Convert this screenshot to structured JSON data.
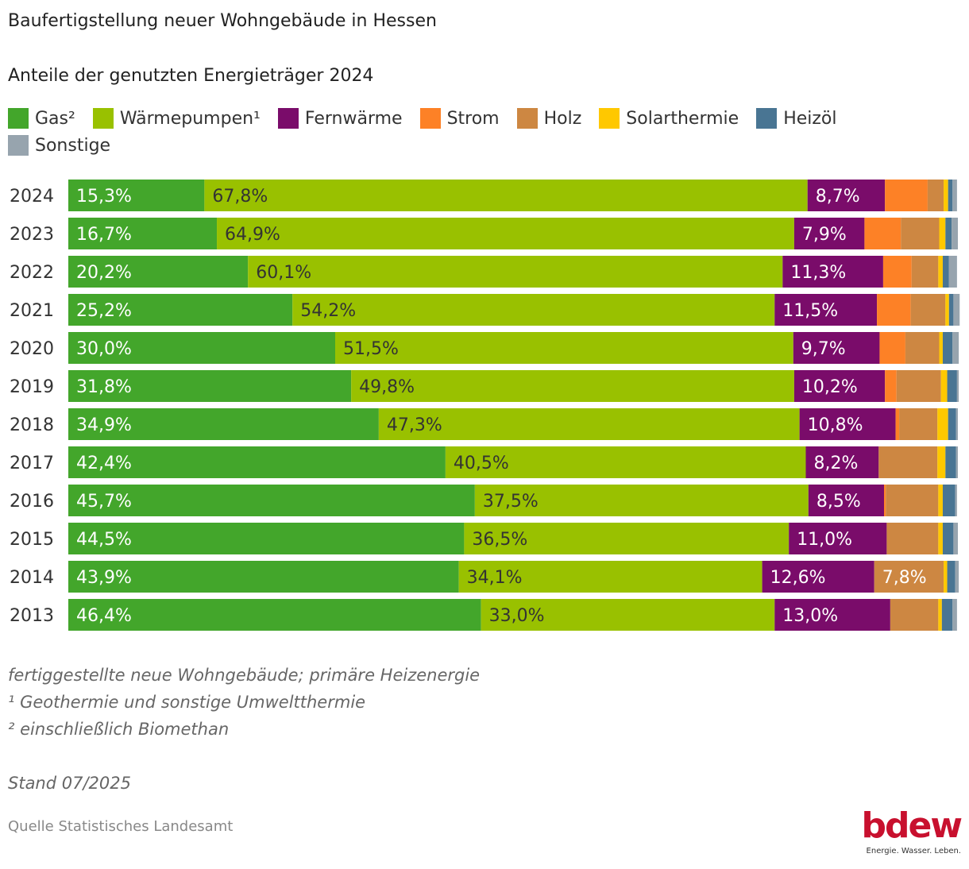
{
  "chart_data": {
    "type": "bar",
    "orientation": "horizontal",
    "stacked": true,
    "title": "Baufertigstellung neuer Wohngebäude in Hessen",
    "subtitle": "Anteile der genutzten Energieträger 2024",
    "legend_position": "top-left",
    "xlim": [
      0,
      100
    ],
    "unit": "%",
    "grid": false,
    "categories": [
      "2024",
      "2023",
      "2022",
      "2021",
      "2020",
      "2019",
      "2018",
      "2017",
      "2016",
      "2015",
      "2014",
      "2013"
    ],
    "series": [
      {
        "name": "Gas²",
        "color": "#43a62b",
        "label_color": "#ffffff",
        "values": [
          15.3,
          16.7,
          20.2,
          25.2,
          30.0,
          31.8,
          34.9,
          42.4,
          45.7,
          44.5,
          43.9,
          46.4
        ],
        "labels": [
          "15,3%",
          "16,7%",
          "20,2%",
          "25,2%",
          "30,0%",
          "31,8%",
          "34,9%",
          "42,4%",
          "45,7%",
          "44,5%",
          "43,9%",
          "46,4%"
        ]
      },
      {
        "name": "Wärmepumpen¹",
        "color": "#99c100",
        "label_color": "#333333",
        "values": [
          67.8,
          64.9,
          60.1,
          54.2,
          51.5,
          49.8,
          47.3,
          40.5,
          37.5,
          36.5,
          34.1,
          33.0
        ],
        "labels": [
          "67,8%",
          "64,9%",
          "60,1%",
          "54,2%",
          "51,5%",
          "49,8%",
          "47,3%",
          "40,5%",
          "37,5%",
          "36,5%",
          "34,1%",
          "33,0%"
        ]
      },
      {
        "name": "Fernwärme",
        "color": "#7a0c6a",
        "label_color": "#ffffff",
        "values": [
          8.7,
          7.9,
          11.3,
          11.5,
          9.7,
          10.2,
          10.8,
          8.2,
          8.5,
          11.0,
          12.6,
          13.0
        ],
        "labels": [
          "8,7%",
          "7,9%",
          "11,3%",
          "11,5%",
          "9,7%",
          "10,2%",
          "10,8%",
          "8,2%",
          "8,5%",
          "11,0%",
          "12,6%",
          "13,0%"
        ]
      },
      {
        "name": "Strom",
        "color": "#fd8126",
        "label_color": "#ffffff",
        "values": [
          4.8,
          4.1,
          3.2,
          3.8,
          2.9,
          1.3,
          0.4,
          0.0,
          0.2,
          0.0,
          0.0,
          0.0
        ]
      },
      {
        "name": "Holz",
        "color": "#cd8742",
        "label_color": "#ffffff",
        "values": [
          1.8,
          4.3,
          3.0,
          3.9,
          3.8,
          5.0,
          4.3,
          6.6,
          5.9,
          5.8,
          7.8,
          5.4
        ],
        "labels": [
          null,
          null,
          null,
          null,
          null,
          null,
          null,
          null,
          null,
          null,
          "7,8%",
          null
        ]
      },
      {
        "name": "Solarthermie",
        "color": "#ffc800",
        "label_color": "#333333",
        "values": [
          0.5,
          0.7,
          0.5,
          0.4,
          0.4,
          0.7,
          1.2,
          0.9,
          0.5,
          0.5,
          0.4,
          0.4
        ]
      },
      {
        "name": "Heizöl",
        "color": "#497593",
        "label_color": "#ffffff",
        "values": [
          0.5,
          0.7,
          0.7,
          0.5,
          1.1,
          1.1,
          0.9,
          1.2,
          1.4,
          1.2,
          0.9,
          1.2
        ]
      },
      {
        "name": "Sonstige",
        "color": "#97a4ae",
        "label_color": "#ffffff",
        "values": [
          0.5,
          0.7,
          0.9,
          0.7,
          0.7,
          0.2,
          0.2,
          0.2,
          0.2,
          0.5,
          0.4,
          0.5
        ]
      }
    ]
  },
  "notes": [
    "fertiggestellte neue Wohngebäude; primäre Heizenergie",
    "¹ Geothermie und sonstige Umweltthermie",
    "² einschließlich Biomethan"
  ],
  "stand": "Stand 07/2025",
  "source": "Quelle Statistisches Landesamt",
  "logo": {
    "word": "bdew",
    "tagline": "Energie. Wasser. Leben.",
    "color": "#c8102e"
  }
}
